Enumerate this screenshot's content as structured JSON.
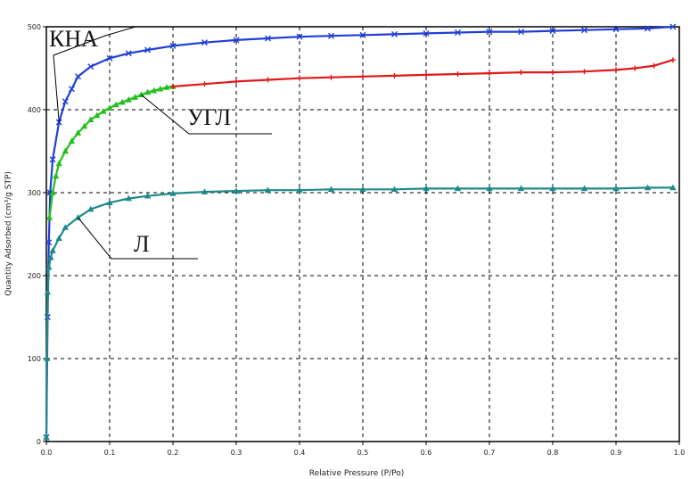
{
  "chart_data": {
    "type": "line",
    "title": "",
    "xlabel": "Relative Pressure (P/Po)",
    "ylabel": "Quantity Adsorbed (cm³/g STP)",
    "xlim": [
      0.0,
      1.0
    ],
    "ylim": [
      0,
      500
    ],
    "xticks": [
      "0.0",
      "0.1",
      "0.2",
      "0.3",
      "0.4",
      "0.5",
      "0.6",
      "0.7",
      "0.8",
      "0.9",
      "1.0"
    ],
    "yticks": [
      "0",
      "100",
      "200",
      "300",
      "400",
      "500"
    ],
    "grid": true,
    "series": [
      {
        "name": "КНА",
        "color": "#1f3fd6",
        "marker": "x",
        "points": [
          [
            0.0,
            5
          ],
          [
            0.002,
            150
          ],
          [
            0.004,
            240
          ],
          [
            0.006,
            300
          ],
          [
            0.01,
            340
          ],
          [
            0.02,
            385
          ],
          [
            0.03,
            410
          ],
          [
            0.04,
            425
          ],
          [
            0.05,
            440
          ],
          [
            0.07,
            452
          ],
          [
            0.1,
            462
          ],
          [
            0.13,
            468
          ],
          [
            0.16,
            472
          ],
          [
            0.2,
            477
          ],
          [
            0.25,
            481
          ],
          [
            0.3,
            484
          ],
          [
            0.35,
            486
          ],
          [
            0.4,
            488
          ],
          [
            0.45,
            489
          ],
          [
            0.5,
            490
          ],
          [
            0.55,
            491
          ],
          [
            0.6,
            492
          ],
          [
            0.65,
            493
          ],
          [
            0.7,
            494
          ],
          [
            0.75,
            494
          ],
          [
            0.8,
            495
          ],
          [
            0.85,
            496
          ],
          [
            0.9,
            497
          ],
          [
            0.95,
            498
          ],
          [
            0.99,
            500
          ]
        ]
      },
      {
        "name": "УГЛ",
        "color": "#22c01c",
        "marker": "triangle",
        "points": [
          [
            0.005,
            270
          ],
          [
            0.01,
            300
          ],
          [
            0.015,
            320
          ],
          [
            0.02,
            335
          ],
          [
            0.03,
            350
          ],
          [
            0.04,
            362
          ],
          [
            0.05,
            372
          ],
          [
            0.06,
            380
          ],
          [
            0.07,
            388
          ],
          [
            0.08,
            393
          ],
          [
            0.09,
            398
          ],
          [
            0.1,
            402
          ],
          [
            0.11,
            406
          ],
          [
            0.12,
            409
          ],
          [
            0.13,
            412
          ],
          [
            0.14,
            415
          ],
          [
            0.15,
            418
          ],
          [
            0.16,
            421
          ],
          [
            0.17,
            423
          ],
          [
            0.18,
            425
          ],
          [
            0.19,
            427
          ],
          [
            0.2,
            428
          ]
        ]
      },
      {
        "name": "",
        "color": "#e01818",
        "marker": "cross",
        "points": [
          [
            0.2,
            428
          ],
          [
            0.25,
            431
          ],
          [
            0.3,
            434
          ],
          [
            0.35,
            436
          ],
          [
            0.4,
            438
          ],
          [
            0.45,
            439
          ],
          [
            0.5,
            440
          ],
          [
            0.55,
            441
          ],
          [
            0.6,
            442
          ],
          [
            0.65,
            443
          ],
          [
            0.7,
            444
          ],
          [
            0.75,
            445
          ],
          [
            0.8,
            445
          ],
          [
            0.85,
            446
          ],
          [
            0.9,
            448
          ],
          [
            0.93,
            450
          ],
          [
            0.96,
            453
          ],
          [
            0.99,
            460
          ]
        ]
      },
      {
        "name": "Л",
        "color": "#1f8a8a",
        "marker": "triangle",
        "points": [
          [
            0.0,
            5
          ],
          [
            0.001,
            100
          ],
          [
            0.002,
            180
          ],
          [
            0.004,
            210
          ],
          [
            0.007,
            222
          ],
          [
            0.01,
            230
          ],
          [
            0.02,
            245
          ],
          [
            0.03,
            258
          ],
          [
            0.05,
            270
          ],
          [
            0.07,
            280
          ],
          [
            0.1,
            288
          ],
          [
            0.13,
            293
          ],
          [
            0.16,
            296
          ],
          [
            0.2,
            299
          ],
          [
            0.25,
            301
          ],
          [
            0.3,
            302
          ],
          [
            0.35,
            303
          ],
          [
            0.4,
            303
          ],
          [
            0.45,
            304
          ],
          [
            0.5,
            304
          ],
          [
            0.55,
            304
          ],
          [
            0.6,
            305
          ],
          [
            0.65,
            305
          ],
          [
            0.7,
            305
          ],
          [
            0.75,
            305
          ],
          [
            0.8,
            305
          ],
          [
            0.85,
            305
          ],
          [
            0.9,
            305
          ],
          [
            0.95,
            306
          ],
          [
            0.99,
            306
          ]
        ]
      }
    ],
    "annotations": [
      {
        "text": "КНА",
        "series": "КНА"
      },
      {
        "text": "УГЛ",
        "series": "УГЛ"
      },
      {
        "text": "Л",
        "series": "Л"
      }
    ]
  }
}
